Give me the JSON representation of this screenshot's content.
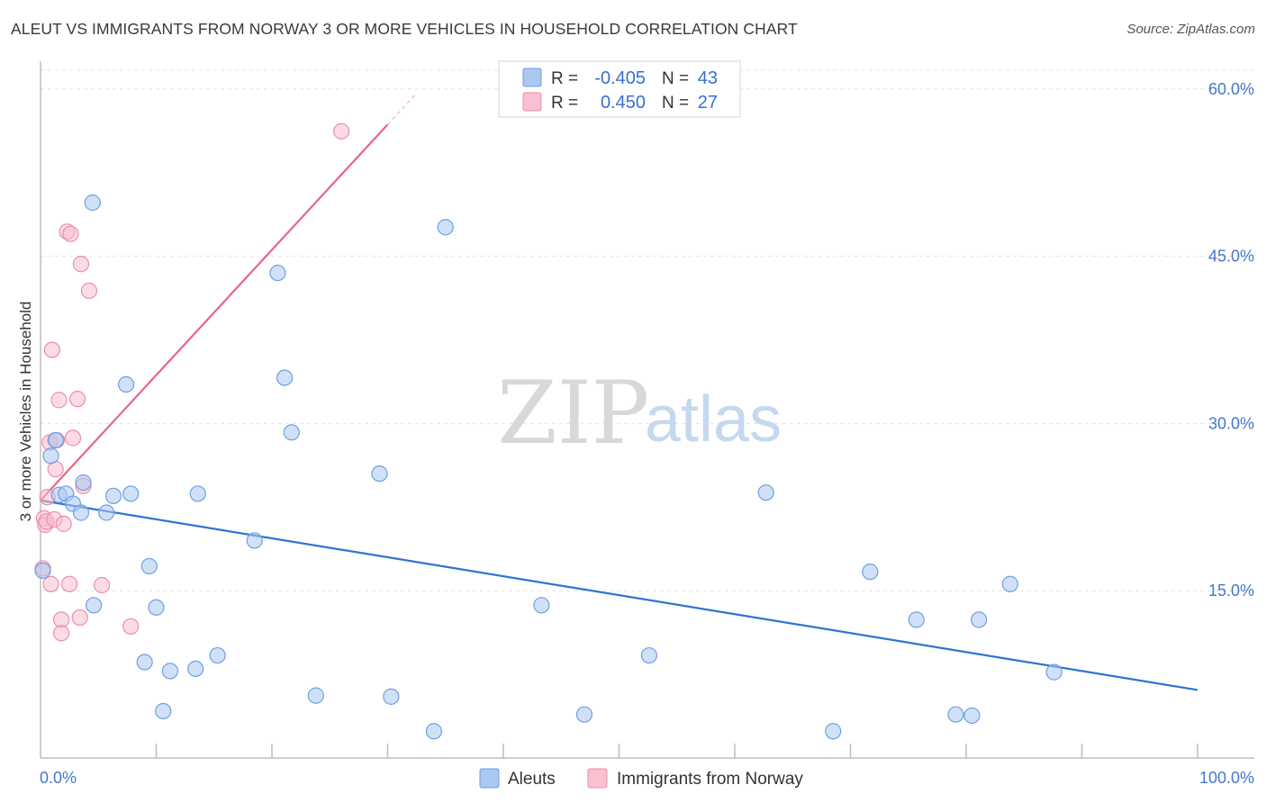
{
  "header": {
    "title": "ALEUT VS IMMIGRANTS FROM NORWAY 3 OR MORE VEHICLES IN HOUSEHOLD CORRELATION CHART",
    "source": "Source: ZipAtlas.com"
  },
  "colors": {
    "aleut_fill": "#aac8f0",
    "aleut_stroke": "#6f9fe0",
    "aleut_line": "#2f74d0",
    "norway_fill": "#f8c0d0",
    "norway_stroke": "#ec8eab",
    "norway_line": "#e8638e"
  },
  "watermark": {
    "zip": "ZIP",
    "atlas": "atlas"
  },
  "legend": {
    "rows": [
      {
        "r_label": "R =",
        "r_value": "-0.405",
        "n_label": "N =",
        "n_value": "43"
      },
      {
        "r_label": "R =",
        "r_value": "0.450",
        "n_label": "N =",
        "n_value": "27"
      }
    ]
  },
  "bottom_legend": {
    "aleut": "Aleuts",
    "norway": "Immigrants from Norway"
  },
  "chart_data": {
    "type": "scatter",
    "title": "ALEUT VS IMMIGRANTS FROM NORWAY 3 OR MORE VEHICLES IN HOUSEHOLD CORRELATION CHART",
    "xlabel": "",
    "ylabel": "3 or more Vehicles in Household",
    "xlim": [
      0,
      100
    ],
    "ylim": [
      0,
      62
    ],
    "x_tick_labels": [
      "0.0%",
      "100.0%"
    ],
    "y_ticks": [
      15,
      30,
      45,
      60
    ],
    "y_tick_labels": [
      "15.0%",
      "30.0%",
      "45.0%",
      "60.0%"
    ],
    "series": [
      {
        "name": "Aleuts",
        "R": -0.405,
        "N": 43,
        "points": [
          [
            0.2,
            16.8
          ],
          [
            0.9,
            27.1
          ],
          [
            1.3,
            28.5
          ],
          [
            1.6,
            23.6
          ],
          [
            2.2,
            23.7
          ],
          [
            2.8,
            22.8
          ],
          [
            3.5,
            22.0
          ],
          [
            3.7,
            24.7
          ],
          [
            4.5,
            49.8
          ],
          [
            4.6,
            13.7
          ],
          [
            5.7,
            22.0
          ],
          [
            6.3,
            23.5
          ],
          [
            7.4,
            33.5
          ],
          [
            7.8,
            23.7
          ],
          [
            9.0,
            8.6
          ],
          [
            9.4,
            17.2
          ],
          [
            10.0,
            13.5
          ],
          [
            10.6,
            4.2
          ],
          [
            11.2,
            7.8
          ],
          [
            13.4,
            8.0
          ],
          [
            13.6,
            23.7
          ],
          [
            15.3,
            9.2
          ],
          [
            18.5,
            19.5
          ],
          [
            20.5,
            43.5
          ],
          [
            21.7,
            29.2
          ],
          [
            21.1,
            34.1
          ],
          [
            23.8,
            5.6
          ],
          [
            29.3,
            25.5
          ],
          [
            30.3,
            5.5
          ],
          [
            34.0,
            2.4
          ],
          [
            35.0,
            47.6
          ],
          [
            43.3,
            13.7
          ],
          [
            47.0,
            3.9
          ],
          [
            52.6,
            9.2
          ],
          [
            62.7,
            23.8
          ],
          [
            68.5,
            2.4
          ],
          [
            71.7,
            16.7
          ],
          [
            75.7,
            12.4
          ],
          [
            79.1,
            3.9
          ],
          [
            80.5,
            3.8
          ],
          [
            81.1,
            12.4
          ],
          [
            83.8,
            15.6
          ],
          [
            87.6,
            7.7
          ]
        ]
      },
      {
        "name": "Immigrants from Norway",
        "R": 0.45,
        "N": 27,
        "points": [
          [
            0.2,
            17.0
          ],
          [
            0.3,
            21.5
          ],
          [
            0.4,
            20.9
          ],
          [
            0.5,
            21.2
          ],
          [
            0.6,
            23.4
          ],
          [
            0.8,
            28.3
          ],
          [
            0.9,
            15.6
          ],
          [
            1.0,
            36.6
          ],
          [
            1.2,
            21.4
          ],
          [
            1.3,
            25.9
          ],
          [
            1.6,
            32.1
          ],
          [
            1.8,
            12.4
          ],
          [
            1.8,
            11.2
          ],
          [
            2.0,
            21.0
          ],
          [
            2.3,
            47.2
          ],
          [
            2.5,
            15.6
          ],
          [
            2.6,
            47.0
          ],
          [
            2.8,
            28.7
          ],
          [
            3.2,
            32.2
          ],
          [
            3.4,
            12.6
          ],
          [
            3.5,
            44.3
          ],
          [
            3.7,
            24.4
          ],
          [
            4.2,
            41.9
          ],
          [
            5.3,
            15.5
          ],
          [
            7.8,
            11.8
          ],
          [
            26.0,
            56.2
          ],
          [
            1.4,
            28.5
          ]
        ]
      }
    ],
    "trendlines": [
      {
        "series": "Aleuts",
        "x": [
          0,
          100
        ],
        "y": [
          23.1,
          6.1
        ]
      },
      {
        "series": "Immigrants from Norway",
        "x": [
          0,
          30
        ],
        "y": [
          23.1,
          56.8
        ]
      }
    ]
  }
}
